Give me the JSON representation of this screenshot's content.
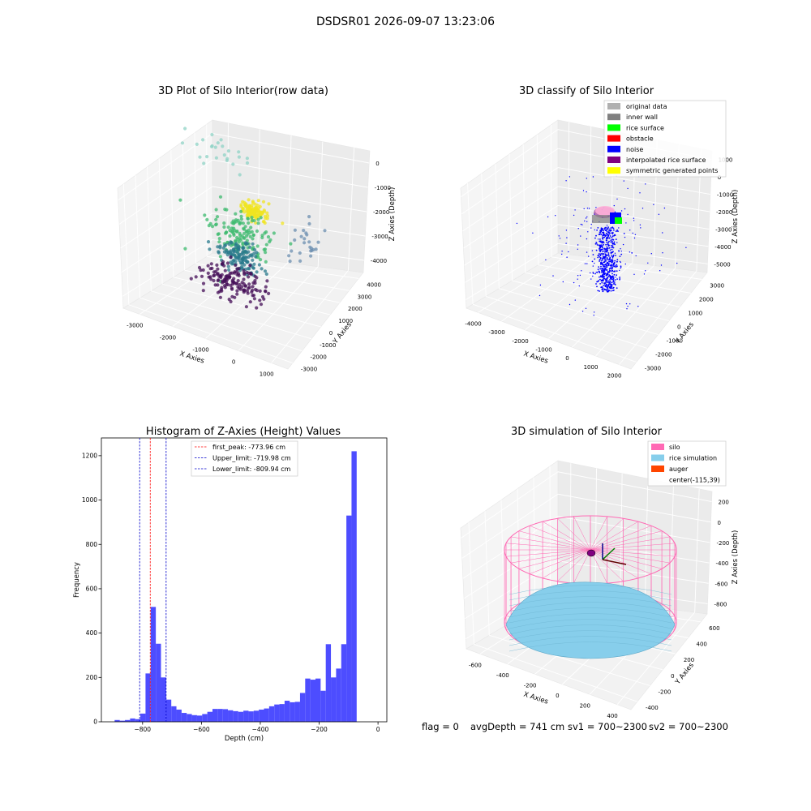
{
  "figure": {
    "suptitle": "DSDSR01 2026-09-07 13:23:06",
    "footer": {
      "flag": "flag = 0",
      "avg_depth": "avgDepth = 741 cm",
      "sv1": "sv1 = 700~2300",
      "sv2": "sv2 = 700~2300"
    }
  },
  "chart_data": [
    {
      "type": "scatter",
      "projection": "3d",
      "title": "3D Plot of Silo Interior(row data)",
      "xlabel": "X Axies",
      "ylabel": "Y Axies",
      "zlabel": "Z Axies (Depth)",
      "x_ticks": [
        "-3000",
        "-2000",
        "-1000",
        "0",
        "1000"
      ],
      "y_ticks": [
        "4000",
        "3000",
        "2000",
        "1000",
        "0",
        "-1000",
        "-2000",
        "-3000"
      ],
      "z_ticks": [
        "0",
        "-1000",
        "-2000",
        "-3000",
        "-4000"
      ],
      "colormap": "viridis",
      "clusters": [
        {
          "center": [
            -600,
            300,
            -1200
          ],
          "spread": [
            250,
            200,
            150
          ],
          "count": 120,
          "color": "#f0e420"
        },
        {
          "center": [
            -900,
            0,
            -2200
          ],
          "spread": [
            500,
            500,
            400
          ],
          "count": 140,
          "color": "#3cb96d"
        },
        {
          "center": [
            -1000,
            100,
            -3300
          ],
          "spread": [
            400,
            300,
            300
          ],
          "count": 130,
          "color": "#2a7a8c"
        },
        {
          "center": [
            -1100,
            -200,
            -4300
          ],
          "spread": [
            500,
            400,
            250
          ],
          "count": 150,
          "color": "#440e57"
        },
        {
          "center": [
            -2500,
            2600,
            -800
          ],
          "spread": [
            600,
            600,
            200
          ],
          "count": 25,
          "color": "#8fd3c6"
        },
        {
          "center": [
            800,
            1500,
            -2500
          ],
          "spread": [
            300,
            500,
            300
          ],
          "count": 25,
          "color": "#6c8fb0"
        }
      ]
    },
    {
      "type": "scatter",
      "projection": "3d",
      "title": "3D classify of Silo Interior",
      "xlabel": "X Axies",
      "ylabel": "Y Axies",
      "zlabel": "Z Axies (Depth)",
      "x_ticks": [
        "-4000",
        "-3000",
        "-2000",
        "-1000",
        "0",
        "1000",
        "2000"
      ],
      "y_ticks": [
        "3000",
        "2000",
        "1000",
        "0",
        "-1000",
        "-2000",
        "-3000"
      ],
      "z_ticks": [
        "1000",
        "0",
        "-1000",
        "-2000",
        "-3000",
        "-4000",
        "-5000"
      ],
      "legend_position": "upper-right",
      "series": [
        {
          "name": "original data",
          "color": "#b0b0b0"
        },
        {
          "name": "inner wall",
          "color": "#808080"
        },
        {
          "name": "rice surface",
          "color": "#00ff00"
        },
        {
          "name": "obstacle",
          "color": "#ff0000"
        },
        {
          "name": "noise",
          "color": "#0000ff"
        },
        {
          "name": "interpolated rice surface",
          "color": "#800080"
        },
        {
          "name": "symmetric generated points",
          "color": "#ffff00"
        }
      ]
    },
    {
      "type": "bar",
      "title": "Histogram of Z-Axies (Height) Values",
      "xlabel": "Depth (cm)",
      "ylabel": "Frequency",
      "xlim": [
        -940,
        30
      ],
      "ylim": [
        0,
        1280
      ],
      "x_ticks": [
        -800,
        -600,
        -400,
        -200,
        0
      ],
      "y_ticks": [
        0,
        200,
        400,
        600,
        800,
        1000,
        1200
      ],
      "bar_color": "#4d4dff",
      "bin_start": -895,
      "bin_width": 17.5,
      "values": [
        8,
        5,
        8,
        15,
        12,
        37,
        218,
        518,
        352,
        200,
        100,
        70,
        55,
        40,
        35,
        30,
        28,
        35,
        45,
        58,
        58,
        57,
        52,
        48,
        45,
        50,
        47,
        50,
        55,
        60,
        70,
        78,
        80,
        95,
        88,
        90,
        130,
        195,
        190,
        195,
        140,
        350,
        200,
        240,
        350,
        930,
        1220
      ],
      "vlines": [
        {
          "label": "first_peak: -773.96 cm",
          "x": -773.96,
          "color": "#ff0000"
        },
        {
          "label": "Upper_limit: -719.98 cm",
          "x": -719.98,
          "color": "#0000cc"
        },
        {
          "label": "Lower_limit: -809.94 cm",
          "x": -809.94,
          "color": "#0000cc"
        }
      ],
      "legend_position": "upper-center"
    },
    {
      "type": "surface",
      "projection": "3d",
      "title": "3D simulation of Silo Interior",
      "xlabel": "X Axies",
      "ylabel": "Y Axies",
      "zlabel": "Z Axies (Depth)",
      "x_ticks": [
        "-600",
        "-400",
        "-200",
        "0",
        "200",
        "400"
      ],
      "y_ticks": [
        "600",
        "400",
        "200",
        "0",
        "-200",
        "-400"
      ],
      "z_ticks": [
        "200",
        "0",
        "-200",
        "-400",
        "-600",
        "-800"
      ],
      "legend_position": "upper-right",
      "series": [
        {
          "name": "silo",
          "color": "#ff69b4"
        },
        {
          "name": "rice simulation",
          "color": "#87ceeb"
        },
        {
          "name": "auger",
          "color": "#ff4500"
        },
        {
          "name": "center(-115,39)",
          "color": ""
        }
      ]
    }
  ]
}
